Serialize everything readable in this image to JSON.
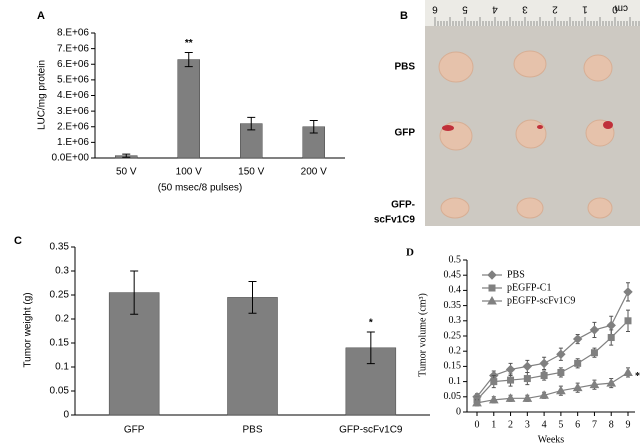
{
  "chart_data": [
    {
      "type": "bar",
      "panel": "A",
      "ylabel": "LUC/mg protein",
      "xlabel": "(50 msec/8 pulses)",
      "categories": [
        "50 V",
        "100 V",
        "150 V",
        "200 V"
      ],
      "values": [
        150000,
        6300000,
        2200000,
        2000000
      ],
      "errors": [
        100000,
        450000,
        400000,
        400000
      ],
      "color": "#7f7f7f",
      "annotation": "**",
      "ylim": [
        0,
        8000000
      ],
      "yticks": [
        {
          "value": 0,
          "label": "0.0E+00"
        },
        {
          "value": 1000000,
          "label": "1.E+06"
        },
        {
          "value": 2000000,
          "label": "2.E+06"
        },
        {
          "value": 3000000,
          "label": "3.E+06"
        },
        {
          "value": 4000000,
          "label": "4.E+06"
        },
        {
          "value": 5000000,
          "label": "5.E+06"
        },
        {
          "value": 6000000,
          "label": "6.E+06"
        },
        {
          "value": 7000000,
          "label": "7.E+06"
        },
        {
          "value": 8000000,
          "label": "8.E+06"
        }
      ]
    },
    {
      "type": "bar",
      "panel": "C",
      "ylabel": "Tumor weight (g)",
      "categories": [
        "GFP",
        "PBS",
        "GFP-scFv1C9"
      ],
      "values": [
        0.255,
        0.245,
        0.14
      ],
      "errors": [
        0.045,
        0.033,
        0.033
      ],
      "color": "#7f7f7f",
      "annotation": "*",
      "ylim": [
        0,
        0.35
      ],
      "yticks": [
        0,
        0.05,
        0.1,
        0.15,
        0.2,
        0.25,
        0.3,
        0.35
      ]
    },
    {
      "type": "line",
      "panel": "D",
      "ylabel": "Tumor volume (cm³)",
      "xlabel": "Weeks",
      "annotation": "*",
      "x": [
        0,
        1,
        2,
        3,
        4,
        5,
        6,
        7,
        8,
        9
      ],
      "series": [
        {
          "name": "PBS",
          "color": "#808080",
          "marker": "diamond",
          "values": [
            0.05,
            0.12,
            0.14,
            0.15,
            0.16,
            0.19,
            0.24,
            0.27,
            0.285,
            0.395
          ],
          "errors": [
            0.01,
            0.015,
            0.02,
            0.02,
            0.02,
            0.02,
            0.015,
            0.025,
            0.03,
            0.03
          ]
        },
        {
          "name": "pEGFP-C1",
          "color": "#808080",
          "marker": "square",
          "values": [
            0.04,
            0.1,
            0.105,
            0.11,
            0.12,
            0.13,
            0.16,
            0.195,
            0.245,
            0.3
          ],
          "errors": [
            0.01,
            0.02,
            0.02,
            0.02,
            0.015,
            0.015,
            0.015,
            0.015,
            0.025,
            0.035
          ]
        },
        {
          "name": "pEGFP-scFv1C9",
          "color": "#808080",
          "marker": "triangle",
          "values": [
            0.03,
            0.04,
            0.045,
            0.045,
            0.055,
            0.07,
            0.08,
            0.09,
            0.095,
            0.13
          ],
          "errors": [
            0.01,
            0.01,
            0.01,
            0.01,
            0.01,
            0.015,
            0.015,
            0.015,
            0.015,
            0.015
          ]
        }
      ],
      "xlim": [
        0,
        9
      ],
      "xticks": [
        0,
        1,
        2,
        3,
        4,
        5,
        6,
        7,
        8,
        9
      ],
      "ylim": [
        0,
        0.5
      ],
      "yticks": [
        0,
        0.05,
        0.1,
        0.15,
        0.2,
        0.25,
        0.3,
        0.35,
        0.4,
        0.45,
        0.5
      ],
      "legend": "upper left"
    }
  ],
  "photo": {
    "panel": "B",
    "ruler": [
      "6",
      "5",
      "4",
      "3",
      "2",
      "1",
      "0"
    ],
    "unit": "cm",
    "rows": [
      [
        "PBS"
      ],
      [
        "GFP"
      ],
      [
        "GFP-",
        "scFv1C9"
      ]
    ]
  }
}
